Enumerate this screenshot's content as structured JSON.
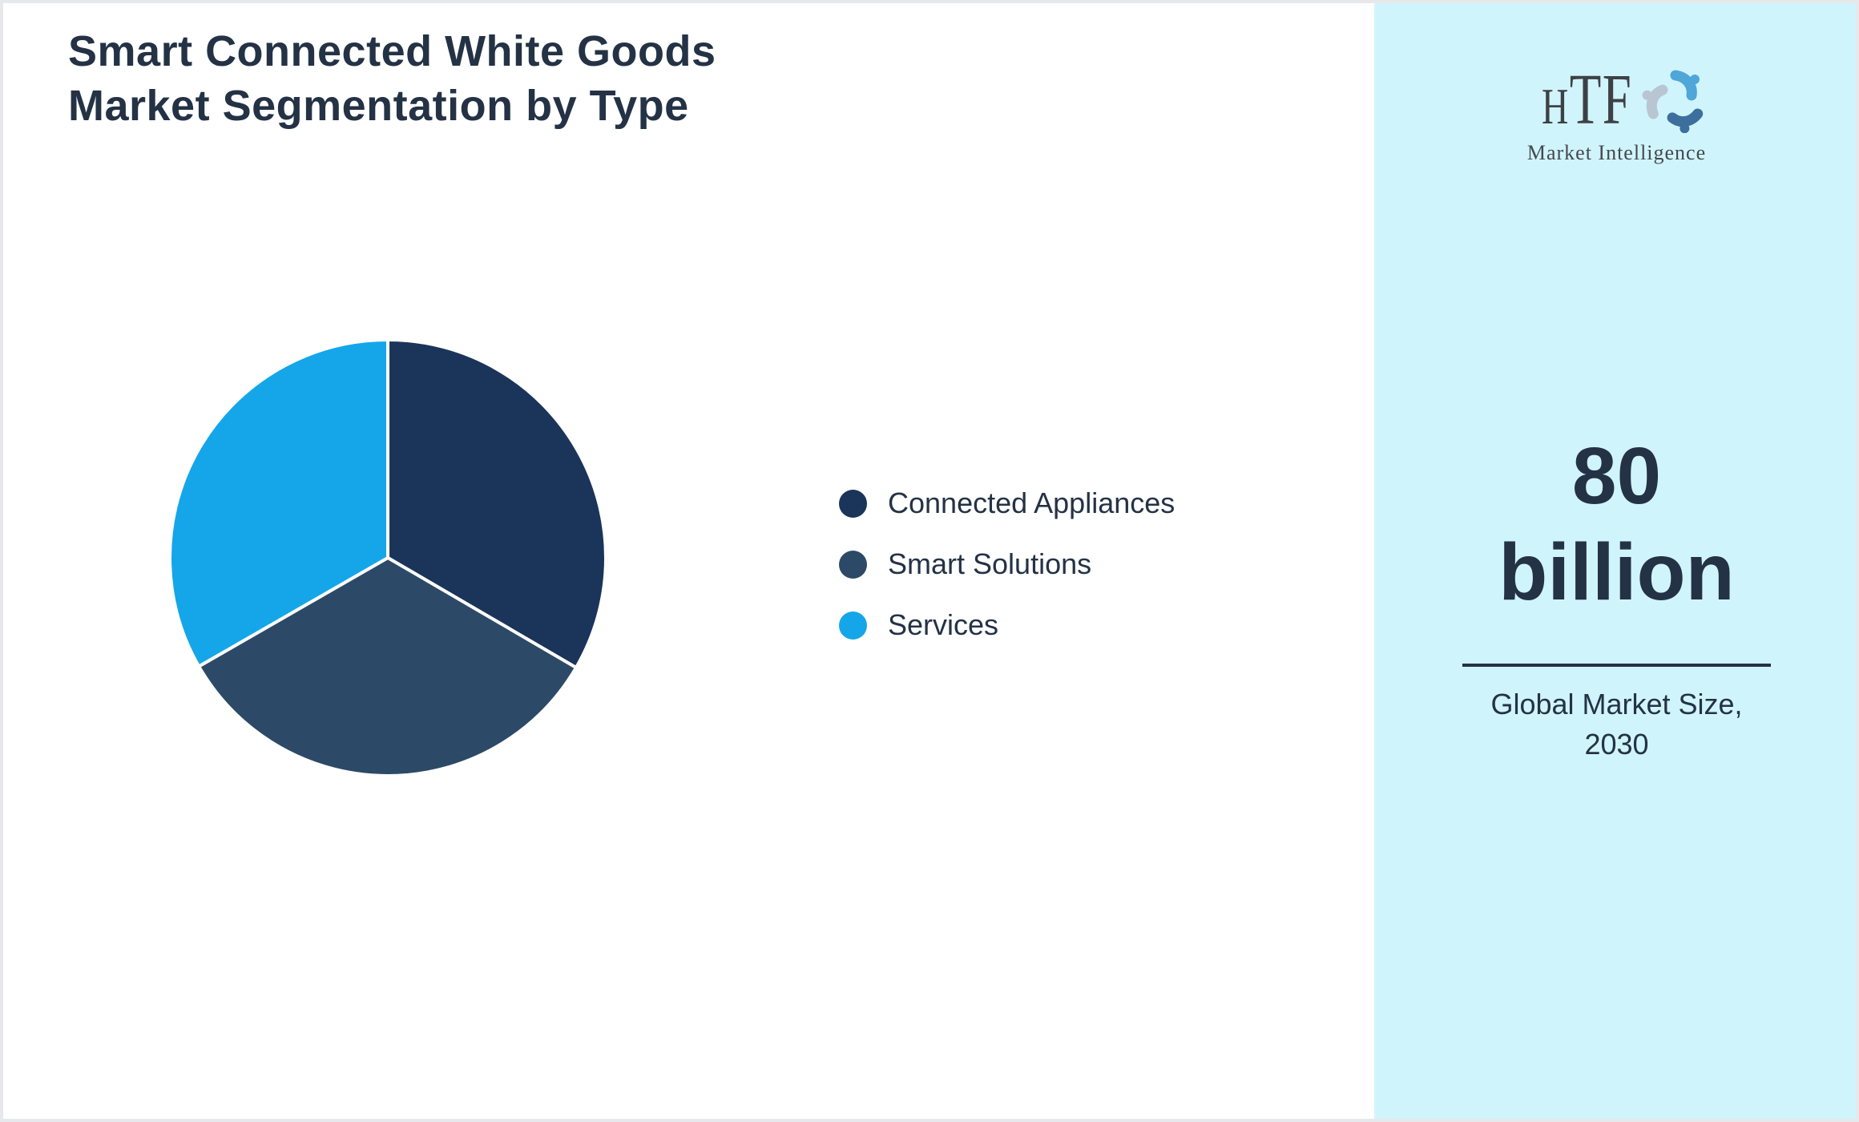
{
  "page": {
    "title_lines": [
      "Smart Connected White Goods",
      "Market Segmentation by Type"
    ]
  },
  "chart_data": {
    "type": "pie",
    "title": "Smart Connected White Goods Market Segmentation by Type",
    "categories": [
      "Connected Appliances",
      "Smart Solutions",
      "Services"
    ],
    "values": [
      33.4,
      33.3,
      33.3
    ],
    "values_note": "three approximately equal slices of ~120 degrees each; no data labels shown",
    "colors": [
      "#1b345a",
      "#2c4a67",
      "#14a6e9"
    ],
    "legend": [
      "Connected Appliances",
      "Smart Solutions",
      "Services"
    ],
    "legend_position": "right",
    "start_angle_deg": 0,
    "direction": "clockwise",
    "slice_border_color": "#ffffff"
  },
  "sidebar": {
    "logo": {
      "brand": "HTF",
      "brand_letters": {
        "h": "H",
        "tf": "TF"
      },
      "tagline": "Market Intelligence",
      "icon": "three-dolphins-swirl-icon"
    },
    "market_size": {
      "value_line1": "80",
      "value_line2": "billion",
      "caption_line1": "Global Market Size,",
      "caption_line2": "2030"
    }
  },
  "colors": {
    "sidebar_bg": "#d0f4fb",
    "text": "#243245",
    "page_border": "#e6e8ec",
    "logo_text": "#3d4145",
    "logo_dolphin_top": "#4fa6d8",
    "logo_dolphin_right": "#3c6f9e",
    "logo_dolphin_left": "#b9c5d2"
  }
}
